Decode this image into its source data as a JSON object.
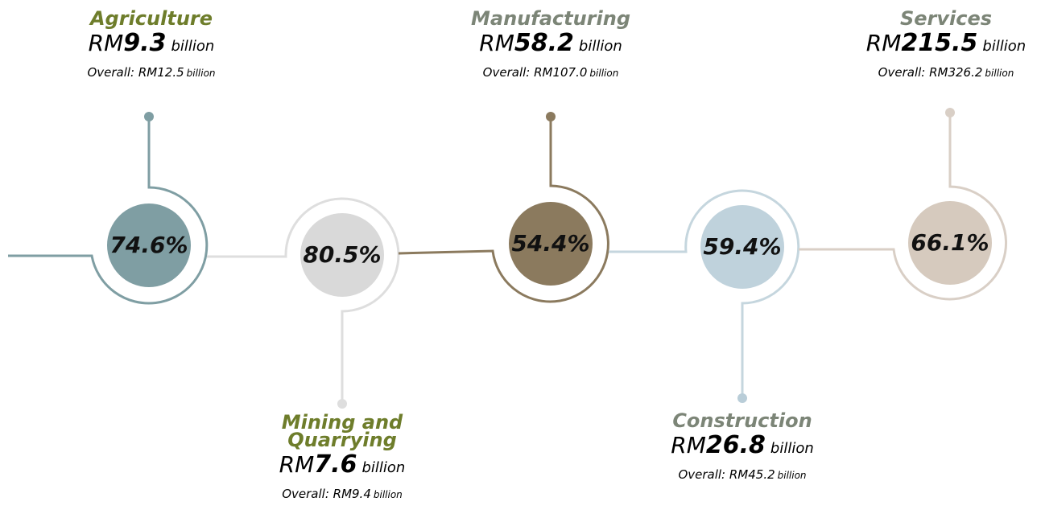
{
  "nodes": [
    {
      "name": "Agriculture",
      "prefix": "RM",
      "amount": "9.3",
      "unit": "billion",
      "overall": "Overall: RM12.5",
      "overall_unit": "billion",
      "percent": "74.6%"
    },
    {
      "name": "Mining and Quarrying",
      "prefix": "RM",
      "amount": "7.6",
      "unit": "billion",
      "overall": "Overall: RM9.4",
      "overall_unit": "billion",
      "percent": "80.5%"
    },
    {
      "name": "Manufacturing",
      "prefix": "RM",
      "amount": "58.2",
      "unit": "billion",
      "overall": "Overall: RM107.0",
      "overall_unit": "billion",
      "percent": "54.4%"
    },
    {
      "name": "Construction",
      "prefix": "RM",
      "amount": "26.8",
      "unit": "billion",
      "overall": "Overall: RM45.2",
      "overall_unit": "billion",
      "percent": "59.4%"
    },
    {
      "name": "Services",
      "prefix": "RM",
      "amount": "215.5",
      "unit": "billion",
      "overall": "Overall: RM326.2",
      "overall_unit": "billion",
      "percent": "66.1%"
    }
  ]
}
